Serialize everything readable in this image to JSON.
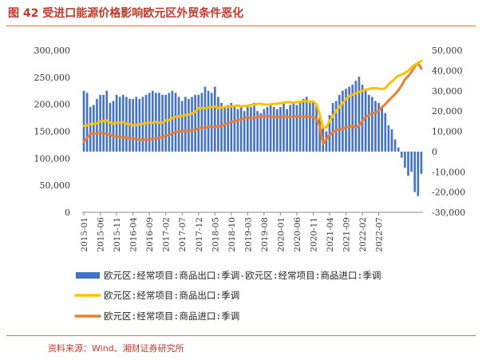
{
  "header": {
    "title": "图 42 受进口能源价格影响欧元区外贸条件恶化"
  },
  "footer": {
    "source": "资料来源：Wind、湘财证券研究所"
  },
  "colors": {
    "bar": "#4472c4",
    "export": "#ffc000",
    "import": "#ed7d31",
    "rule": "#e0731f",
    "title": "#c0392b"
  },
  "chart_data": {
    "type": "bar+line",
    "title": "受进口能源价格影响欧元区外贸条件恶化",
    "left_axis": {
      "min": 0,
      "max": 300000,
      "ticks": [
        "0",
        "50,000",
        "100,000",
        "150,000",
        "200,000",
        "250,000",
        "300,000"
      ],
      "tick_values": [
        0,
        50000,
        100000,
        150000,
        200000,
        250000,
        300000
      ]
    },
    "right_axis": {
      "min": -30000,
      "max": 50000,
      "ticks": [
        "-30,000",
        "-20,000",
        "-10,000",
        "0",
        "10,000",
        "20,000",
        "30,000",
        "40,000",
        "50,000"
      ],
      "tick_values": [
        -30000,
        -20000,
        -10000,
        0,
        10000,
        20000,
        30000,
        40000,
        50000
      ]
    },
    "x_tick_labels": [
      "2015-01",
      "2015-06",
      "2015-11",
      "2016-04",
      "2016-09",
      "2017-02",
      "2017-07",
      "2017-12",
      "2018-05",
      "2018-10",
      "2019-03",
      "2019-08",
      "2020-01",
      "2020-06",
      "2020-11",
      "2021-04",
      "2021-09",
      "2022-02",
      "2022-07"
    ],
    "series": [
      {
        "name": "欧元区:经常项目:商品出口:季调-欧元区:经常项目:商品进口:季调",
        "axis": "right",
        "type": "bar",
        "values": [
          30000,
          29000,
          22000,
          23000,
          26000,
          28000,
          28000,
          30000,
          24000,
          25000,
          28000,
          27000,
          28000,
          27000,
          26000,
          26000,
          27000,
          26000,
          27000,
          28000,
          29000,
          30000,
          29000,
          29000,
          28000,
          28000,
          29000,
          30000,
          29000,
          27000,
          25000,
          27000,
          26000,
          27000,
          28000,
          28000,
          29000,
          32000,
          30000,
          29000,
          32000,
          27000,
          24000,
          22000,
          23000,
          24000,
          22000,
          21000,
          22000,
          20000,
          23000,
          22000,
          24000,
          20000,
          19000,
          21000,
          22000,
          23000,
          22000,
          21000,
          22000,
          24000,
          21000,
          23000,
          24000,
          23000,
          25000,
          26000,
          27000,
          24000,
          25000,
          23000,
          17000,
          12000,
          10000,
          18000,
          24000,
          25000,
          28000,
          30000,
          31000,
          32000,
          33000,
          35000,
          37000,
          33000,
          31000,
          28000,
          27000,
          25000,
          24000,
          22000,
          19000,
          13000,
          11000,
          6000,
          2000,
          -3000,
          -8000,
          -12000,
          -10000,
          -20000,
          -22000,
          -11000
        ]
      },
      {
        "name": "欧元区:经常项目:商品出口:季调",
        "axis": "left",
        "type": "line",
        "values": [
          160000,
          161000,
          163000,
          164000,
          165000,
          168000,
          169000,
          170000,
          166000,
          164000,
          166000,
          166000,
          167000,
          164000,
          163000,
          161000,
          162000,
          163000,
          164000,
          165000,
          166000,
          166000,
          167000,
          166000,
          166000,
          170000,
          171000,
          174000,
          177000,
          177000,
          179000,
          180000,
          181000,
          183000,
          186000,
          193000,
          193000,
          193000,
          194000,
          195000,
          196000,
          193000,
          194000,
          195000,
          195000,
          196000,
          197000,
          198000,
          196000,
          197000,
          197000,
          199000,
          199000,
          201000,
          201000,
          200000,
          199000,
          200000,
          201000,
          201000,
          202000,
          203000,
          204000,
          204000,
          203000,
          204000,
          205000,
          206000,
          206000,
          205000,
          205000,
          200000,
          180000,
          157000,
          157000,
          170000,
          178000,
          188000,
          195000,
          202000,
          210000,
          215000,
          218000,
          220000,
          223000,
          225000,
          227000,
          228000,
          230000,
          230000,
          229000,
          228000,
          230000,
          237000,
          242000,
          248000,
          253000,
          255000,
          258000,
          262000,
          268000,
          273000,
          276000,
          280000
        ]
      },
      {
        "name": "欧元区:经常项目:商品进口:季调",
        "axis": "left",
        "type": "line",
        "values": [
          130000,
          138000,
          145000,
          146000,
          146000,
          147000,
          146000,
          145000,
          144000,
          141000,
          140000,
          139000,
          139000,
          138000,
          137000,
          137000,
          136000,
          135000,
          134000,
          135000,
          135000,
          136000,
          137000,
          138000,
          139000,
          142000,
          143000,
          146000,
          149000,
          150000,
          150000,
          151000,
          150000,
          152000,
          152000,
          156000,
          157000,
          156000,
          159000,
          159000,
          158000,
          159000,
          160000,
          163000,
          165000,
          167000,
          169000,
          171000,
          172000,
          174000,
          176000,
          174000,
          175000,
          176000,
          178000,
          178000,
          178000,
          177000,
          176000,
          176000,
          177000,
          178000,
          177000,
          177000,
          177000,
          178000,
          178000,
          177000,
          177000,
          178000,
          176000,
          173000,
          160000,
          127000,
          135000,
          144000,
          148000,
          152000,
          154000,
          155000,
          157000,
          158000,
          160000,
          157000,
          160000,
          169000,
          176000,
          180000,
          183000,
          185000,
          188000,
          195000,
          200000,
          207000,
          213000,
          219000,
          226000,
          235000,
          246000,
          252000,
          260000,
          270000,
          277000,
          266000
        ]
      }
    ],
    "legend": [
      {
        "label": "欧元区:经常项目:商品出口:季调-欧元区:经常项目:商品进口:季调",
        "marker": "bar"
      },
      {
        "label": "欧元区:经常项目:商品出口:季调",
        "marker": "line"
      },
      {
        "label": "欧元区:经常项目:商品进口:季调",
        "marker": "line"
      }
    ]
  }
}
